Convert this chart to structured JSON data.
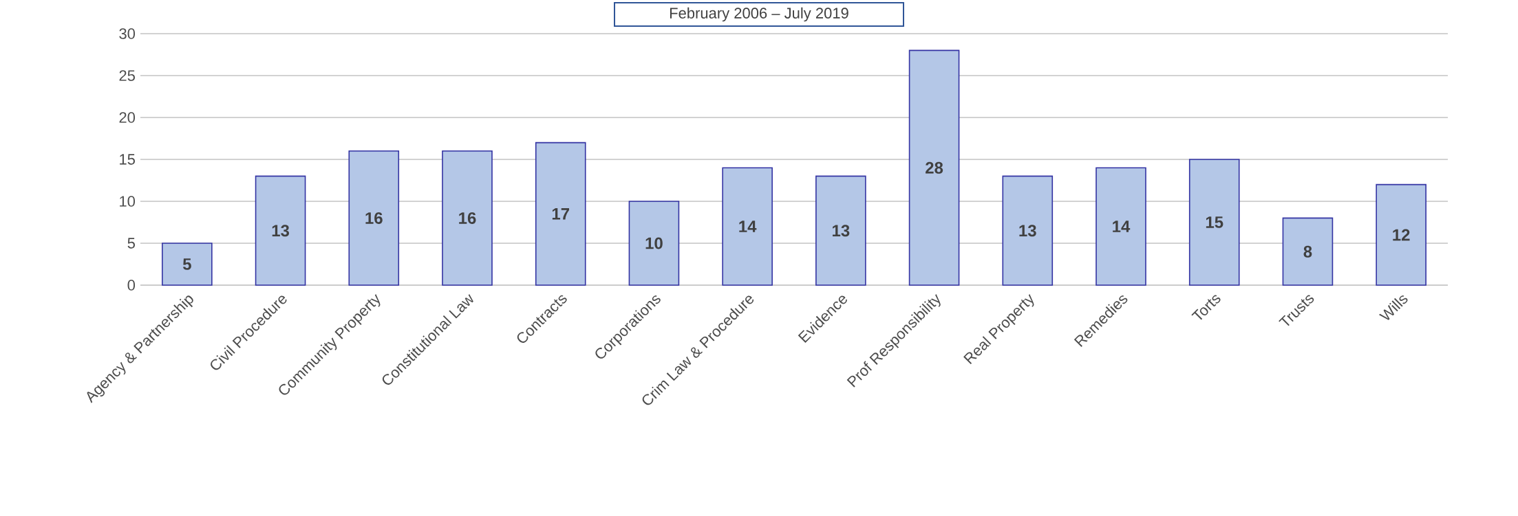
{
  "chart_data": {
    "type": "bar",
    "title": "February 2006 – July 2019",
    "categories": [
      "Agency & Partnership",
      "Civil Procedure",
      "Community Property",
      "Constitutional Law",
      "Contracts",
      "Corporations",
      "Crim Law & Procedure",
      "Evidence",
      "Prof Responsibility",
      "Real Property",
      "Remedies",
      "Torts",
      "Trusts",
      "Wills"
    ],
    "values": [
      5,
      13,
      16,
      16,
      17,
      10,
      14,
      13,
      28,
      13,
      14,
      15,
      8,
      12
    ],
    "color": "#b4c7e7",
    "ylim": [
      0,
      30
    ],
    "yticks": [
      0,
      5,
      10,
      15,
      20,
      25,
      30
    ],
    "grid": "y",
    "data_labels": true
  }
}
